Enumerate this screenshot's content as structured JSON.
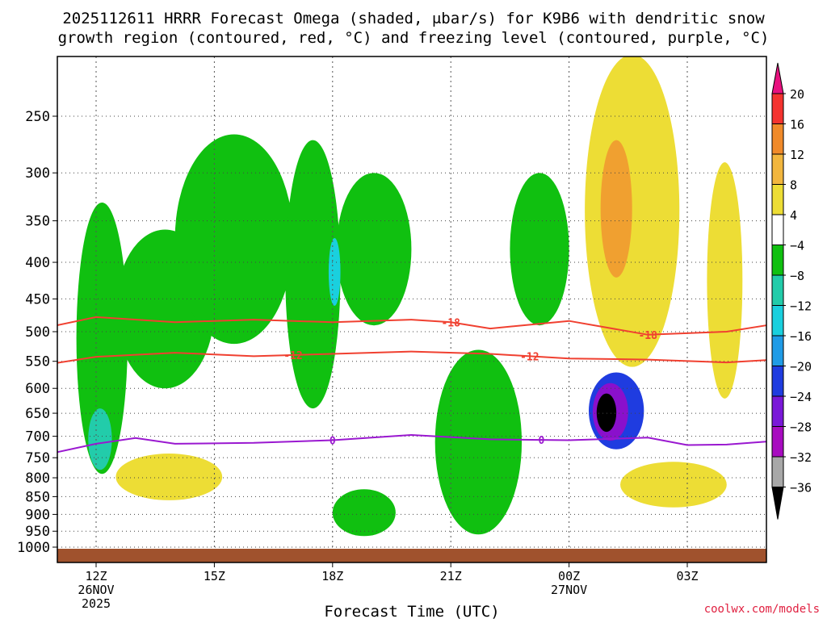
{
  "title": {
    "line1": "2025112611 HRRR Forecast Omega (shaded, μbar/s) for K9B6 with dendritic snow",
    "line2": "growth region (contoured, red, °C) and freezing level (contoured, purple, °C)"
  },
  "footer": {
    "xlabel": "Forecast Time (UTC)",
    "credit": "coolwx.com/models"
  },
  "chart_data": {
    "type": "heatmap",
    "xlabel": "Forecast Time (UTC)",
    "ylabel": "",
    "y_scale": "log-pressure",
    "y_axis_units": "hPa",
    "x_axis_units": "hours since 2025-11-26 12Z",
    "grid": true,
    "x_ticks": [
      {
        "hour": 0,
        "label": "12Z",
        "sub": [
          "26NOV",
          "2025"
        ]
      },
      {
        "hour": 3,
        "label": "15Z",
        "sub": []
      },
      {
        "hour": 6,
        "label": "18Z",
        "sub": []
      },
      {
        "hour": 9,
        "label": "21Z",
        "sub": []
      },
      {
        "hour": 12,
        "label": "00Z",
        "sub": [
          "27NOV"
        ]
      },
      {
        "hour": 15,
        "label": "03Z",
        "sub": []
      }
    ],
    "x_range": [
      -1,
      17
    ],
    "y_ticks": [
      250,
      300,
      350,
      400,
      450,
      500,
      550,
      600,
      650,
      700,
      750,
      800,
      850,
      900,
      950,
      1000
    ],
    "y_range": [
      1000,
      200
    ],
    "colorbar": {
      "labels": [
        "20",
        "16",
        "12",
        "8",
        "4",
        "−4",
        "−8",
        "−12",
        "−16",
        "−20",
        "−24",
        "−28",
        "−32",
        "−36"
      ],
      "colors": [
        "#e8117f",
        "#f4332f",
        "#f08a2a",
        "#f2b63e",
        "#eddd35",
        "#ffffff",
        "#10c010",
        "#22ccaa",
        "#1ad0de",
        "#1f9be6",
        "#1f3ce0",
        "#7a18d8",
        "#a80cc0",
        "#a8a8a8",
        "#000000"
      ],
      "arrow_top_color": "#e8117f",
      "arrow_bottom_color": "#000000"
    },
    "omega_regions": [
      {
        "color": "green",
        "t0": -0.5,
        "t1": 0.8,
        "p_top": 330,
        "p_bot": 790
      },
      {
        "color": "green",
        "t0": 0.5,
        "t1": 3.0,
        "p_top": 360,
        "p_bot": 600
      },
      {
        "color": "green",
        "t0": 2.0,
        "t1": 5.0,
        "p_top": 265,
        "p_bot": 520
      },
      {
        "color": "green",
        "t0": 4.8,
        "t1": 6.2,
        "p_top": 270,
        "p_bot": 640
      },
      {
        "color": "green",
        "t0": 6.1,
        "t1": 8.0,
        "p_top": 300,
        "p_bot": 490
      },
      {
        "color": "green",
        "t0": 8.6,
        "t1": 10.8,
        "p_top": 530,
        "p_bot": 960
      },
      {
        "color": "green",
        "t0": 10.5,
        "t1": 12.0,
        "p_top": 300,
        "p_bot": 490
      },
      {
        "color": "green",
        "t0": 6.0,
        "t1": 7.6,
        "p_top": 830,
        "p_bot": 965
      },
      {
        "color": "teal",
        "t0": -0.2,
        "t1": 0.4,
        "p_top": 640,
        "p_bot": 780
      },
      {
        "color": "cyan",
        "t0": 5.9,
        "t1": 6.2,
        "p_top": 370,
        "p_bot": 460
      },
      {
        "color": "blue",
        "t0": 12.5,
        "t1": 13.9,
        "p_top": 570,
        "p_bot": 730
      },
      {
        "color": "purple",
        "t0": 12.6,
        "t1": 13.5,
        "p_top": 590,
        "p_bot": 710
      },
      {
        "color": "black",
        "t0": 12.7,
        "t1": 13.2,
        "p_top": 610,
        "p_bot": 690
      },
      {
        "color": "yellow",
        "t0": 12.4,
        "t1": 14.8,
        "p_top": 205,
        "p_bot": 560
      },
      {
        "color": "orange",
        "t0": 12.8,
        "t1": 13.6,
        "p_top": 270,
        "p_bot": 420
      },
      {
        "color": "yellow",
        "t0": 15.5,
        "t1": 16.4,
        "p_top": 290,
        "p_bot": 620
      },
      {
        "color": "yellow",
        "t0": 13.3,
        "t1": 16.0,
        "p_top": 760,
        "p_bot": 880
      },
      {
        "color": "yellow",
        "t0": 0.5,
        "t1": 3.2,
        "p_top": 740,
        "p_bot": 860
      }
    ],
    "dgz_contours": [
      {
        "value": -18,
        "label": "-18",
        "color": "#f04030",
        "points": [
          [
            -1,
            490
          ],
          [
            0,
            477
          ],
          [
            2,
            485
          ],
          [
            4,
            481
          ],
          [
            6,
            485
          ],
          [
            8,
            481
          ],
          [
            9,
            485
          ],
          [
            10,
            495
          ],
          [
            12,
            483
          ],
          [
            14,
            505
          ],
          [
            16,
            500
          ],
          [
            17,
            490
          ]
        ]
      },
      {
        "value": -12,
        "label": "-12",
        "color": "#f04030",
        "points": [
          [
            -1,
            553
          ],
          [
            0,
            542
          ],
          [
            2,
            535
          ],
          [
            4,
            541
          ],
          [
            6,
            537
          ],
          [
            8,
            533
          ],
          [
            10,
            537
          ],
          [
            12,
            545
          ],
          [
            14,
            547
          ],
          [
            16,
            552
          ],
          [
            17,
            548
          ]
        ]
      }
    ],
    "freezing_level": {
      "value": 0,
      "label": "0",
      "color": "#9a18d0",
      "points": [
        [
          -1,
          737
        ],
        [
          0,
          717
        ],
        [
          1,
          704
        ],
        [
          2,
          717
        ],
        [
          4,
          715
        ],
        [
          6,
          709
        ],
        [
          8,
          697
        ],
        [
          10,
          707
        ],
        [
          12,
          709
        ],
        [
          14,
          703
        ],
        [
          15,
          720
        ],
        [
          16,
          719
        ],
        [
          17,
          712
        ]
      ]
    },
    "terrain_color": "#a0522d"
  }
}
